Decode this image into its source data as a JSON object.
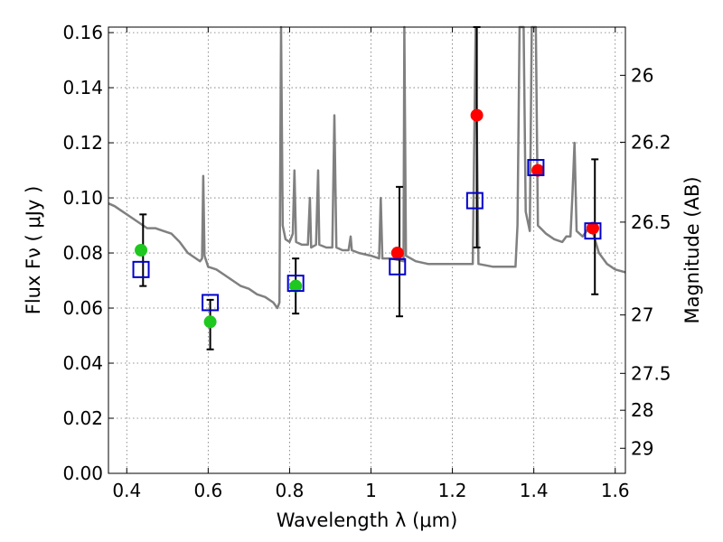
{
  "chart_data": {
    "type": "scatter",
    "xlabel": "Wavelength  λ (μm)",
    "ylabel": "Flux  Fν  ( μJy )",
    "y2label": "Magnitude (AB)",
    "xlim": [
      0.355,
      1.625
    ],
    "ylim": [
      0.0,
      0.162
    ],
    "grid": true,
    "x_ticks": [
      0.4,
      0.6,
      0.8,
      1.0,
      1.2,
      1.4,
      1.6
    ],
    "x_tick_labels": [
      "0.4",
      "0.6",
      "0.8",
      "1",
      "1.2",
      "1.4",
      "1.6"
    ],
    "y_ticks": [
      0.0,
      0.02,
      0.04,
      0.06,
      0.08,
      0.1,
      0.12,
      0.14,
      0.16
    ],
    "y_tick_labels": [
      "0.00",
      "0.02",
      "0.04",
      "0.06",
      "0.08",
      "0.10",
      "0.12",
      "0.14",
      "0.16"
    ],
    "y2_ticks": [
      {
        "label": "26",
        "flux": 0.1445
      },
      {
        "label": "26.2",
        "flux": 0.1202
      },
      {
        "label": "26.5",
        "flux": 0.0912
      },
      {
        "label": "27",
        "flux": 0.0575
      },
      {
        "label": "27.5",
        "flux": 0.0363
      },
      {
        "label": "28",
        "flux": 0.0229
      },
      {
        "label": "29",
        "flux": 0.0091
      }
    ],
    "model_spectrum": {
      "color": "#808080",
      "points": [
        [
          0.355,
          0.098
        ],
        [
          0.37,
          0.097
        ],
        [
          0.39,
          0.095
        ],
        [
          0.41,
          0.093
        ],
        [
          0.43,
          0.091
        ],
        [
          0.45,
          0.089
        ],
        [
          0.47,
          0.089
        ],
        [
          0.49,
          0.088
        ],
        [
          0.51,
          0.087
        ],
        [
          0.53,
          0.084
        ],
        [
          0.55,
          0.08
        ],
        [
          0.57,
          0.078
        ],
        [
          0.58,
          0.077
        ],
        [
          0.585,
          0.078
        ],
        [
          0.588,
          0.108
        ],
        [
          0.591,
          0.079
        ],
        [
          0.6,
          0.075
        ],
        [
          0.62,
          0.074
        ],
        [
          0.64,
          0.072
        ],
        [
          0.66,
          0.07
        ],
        [
          0.68,
          0.068
        ],
        [
          0.7,
          0.067
        ],
        [
          0.72,
          0.065
        ],
        [
          0.74,
          0.064
        ],
        [
          0.76,
          0.062
        ],
        [
          0.77,
          0.06
        ],
        [
          0.775,
          0.062
        ],
        [
          0.779,
          0.165
        ],
        [
          0.783,
          0.09
        ],
        [
          0.79,
          0.085
        ],
        [
          0.8,
          0.084
        ],
        [
          0.808,
          0.087
        ],
        [
          0.812,
          0.11
        ],
        [
          0.816,
          0.084
        ],
        [
          0.83,
          0.083
        ],
        [
          0.845,
          0.083
        ],
        [
          0.85,
          0.1
        ],
        [
          0.853,
          0.082
        ],
        [
          0.865,
          0.083
        ],
        [
          0.87,
          0.11
        ],
        [
          0.873,
          0.083
        ],
        [
          0.89,
          0.082
        ],
        [
          0.905,
          0.082
        ],
        [
          0.91,
          0.13
        ],
        [
          0.915,
          0.082
        ],
        [
          0.93,
          0.081
        ],
        [
          0.945,
          0.081
        ],
        [
          0.95,
          0.086
        ],
        [
          0.953,
          0.081
        ],
        [
          0.97,
          0.08
        ],
        [
          1.0,
          0.079
        ],
        [
          1.02,
          0.078
        ],
        [
          1.024,
          0.1
        ],
        [
          1.028,
          0.078
        ],
        [
          1.05,
          0.078
        ],
        [
          1.08,
          0.077
        ],
        [
          1.082,
          0.165
        ],
        [
          1.086,
          0.079
        ],
        [
          1.11,
          0.077
        ],
        [
          1.14,
          0.076
        ],
        [
          1.17,
          0.076
        ],
        [
          1.2,
          0.076
        ],
        [
          1.23,
          0.076
        ],
        [
          1.25,
          0.076
        ],
        [
          1.257,
          0.165
        ],
        [
          1.264,
          0.076
        ],
        [
          1.3,
          0.075
        ],
        [
          1.33,
          0.075
        ],
        [
          1.355,
          0.075
        ],
        [
          1.36,
          0.09
        ],
        [
          1.365,
          0.165
        ],
        [
          1.375,
          0.165
        ],
        [
          1.38,
          0.095
        ],
        [
          1.39,
          0.088
        ],
        [
          1.395,
          0.165
        ],
        [
          1.405,
          0.165
        ],
        [
          1.41,
          0.09
        ],
        [
          1.43,
          0.087
        ],
        [
          1.45,
          0.085
        ],
        [
          1.47,
          0.084
        ],
        [
          1.48,
          0.086
        ],
        [
          1.49,
          0.086
        ],
        [
          1.495,
          0.101
        ],
        [
          1.5,
          0.12
        ],
        [
          1.505,
          0.088
        ],
        [
          1.52,
          0.086
        ],
        [
          1.54,
          0.09
        ],
        [
          1.56,
          0.08
        ],
        [
          1.58,
          0.076
        ],
        [
          1.6,
          0.074
        ],
        [
          1.625,
          0.073
        ]
      ]
    },
    "green_points": {
      "color": "#1ec81e",
      "points": [
        [
          0.435,
          0.081
        ],
        [
          0.605,
          0.055
        ],
        [
          0.815,
          0.068
        ]
      ]
    },
    "red_points": {
      "color": "#ff0000",
      "points": [
        [
          1.065,
          0.08
        ],
        [
          1.26,
          0.13
        ],
        [
          1.41,
          0.11
        ],
        [
          1.545,
          0.089
        ]
      ]
    },
    "blue_squares": {
      "color": "#0000cc",
      "points": [
        [
          0.435,
          0.074
        ],
        [
          0.605,
          0.062
        ],
        [
          0.815,
          0.069
        ],
        [
          1.065,
          0.075
        ],
        [
          1.255,
          0.099
        ],
        [
          1.405,
          0.111
        ],
        [
          1.545,
          0.088
        ]
      ]
    },
    "error_bars": [
      {
        "x": 0.44,
        "low": 0.068,
        "high": 0.094
      },
      {
        "x": 0.605,
        "low": 0.045,
        "high": 0.063
      },
      {
        "x": 0.815,
        "low": 0.058,
        "high": 0.078
      },
      {
        "x": 1.07,
        "low": 0.057,
        "high": 0.104
      },
      {
        "x": 1.26,
        "low": 0.082,
        "high": 0.165
      },
      {
        "x": 1.55,
        "low": 0.065,
        "high": 0.114
      }
    ]
  }
}
